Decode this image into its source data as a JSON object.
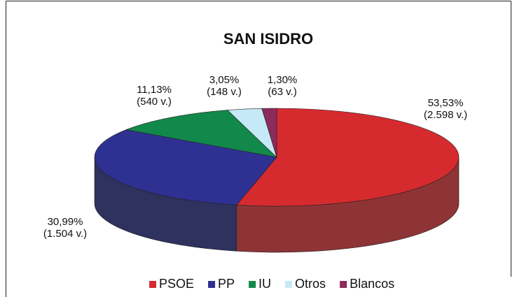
{
  "chart_data": {
    "type": "pie",
    "title": "SAN ISIDRO",
    "categories": [
      "PSOE",
      "PP",
      "IU",
      "Otros",
      "Blancos"
    ],
    "values": [
      53.53,
      30.99,
      11.13,
      3.05,
      1.3
    ],
    "value_labels": [
      "53,53%",
      "30,99%",
      "11,13%",
      "3,05%",
      "1,30%"
    ],
    "vote_labels": [
      "(2.598 v.)",
      "(1.504 v.)",
      "(540 v.)",
      "(148 v.)",
      "(63 v.)"
    ],
    "colors": [
      "#d62b2e",
      "#2e3192",
      "#12894a",
      "#c6e9f8",
      "#8c2b5c"
    ],
    "side_colors": [
      "#8e3437",
      "#2f315f",
      "#0e5e33",
      "#8fb5c6",
      "#5e2040"
    ],
    "legend": "bottom"
  }
}
